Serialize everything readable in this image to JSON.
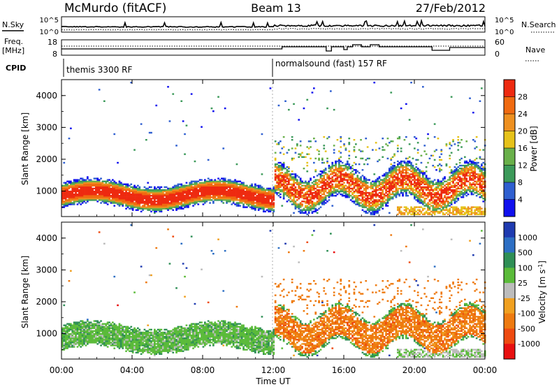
{
  "header": {
    "station": "McMurdo (fitACF)",
    "beam": "Beam 13",
    "date": "27/Feb/2012"
  },
  "top_panels": {
    "nsky_label": "N.Sky",
    "nsearch_label": "N.Search",
    "noise_ticks_left": [
      "10^5",
      "10^0"
    ],
    "noise_ticks_right": [
      "10^5",
      "10^0"
    ],
    "freq_label_line1": "Freq.",
    "freq_label_line2": "[MHz]",
    "freq_ticks": [
      "18",
      "8"
    ],
    "nave_label": "Nave",
    "nave_ticks": [
      "60",
      "0"
    ],
    "cpid_label": "CPID",
    "cpid_segments": [
      "themis 3300 RF",
      "normalsound (fast) 157 RF"
    ]
  },
  "x_axis": {
    "title": "Time UT",
    "ticks": [
      "00:00",
      "04:00",
      "08:00",
      "12:00",
      "16:00",
      "20:00",
      "00:00"
    ]
  },
  "chart_data": [
    {
      "type": "heatmap",
      "parameter": "power",
      "ylabel": "Slant Range [km]",
      "yticks": [
        1000,
        2000,
        3000,
        4000
      ],
      "ylim": [
        200,
        4500
      ],
      "xlim_hours": [
        0,
        24
      ],
      "colorbar": {
        "title": "Power [dB]",
        "ticks": [
          "4",
          "8",
          "12",
          "16",
          "20",
          "24",
          "28"
        ],
        "colors": [
          "#1010ee",
          "#2f5fd0",
          "#3c9a5a",
          "#69b04a",
          "#e6c21a",
          "#ee9020",
          "#f06a10",
          "#ee2a10"
        ]
      }
    },
    {
      "type": "heatmap",
      "parameter": "velocity",
      "ylabel": "Slant Range [km]",
      "yticks": [
        1000,
        2000,
        3000,
        4000
      ],
      "ylim": [
        200,
        4500
      ],
      "xlim_hours": [
        0,
        24
      ],
      "colorbar": {
        "title": "Velocity [m s^-1]",
        "ticks": [
          "1000",
          "500",
          "100",
          "25",
          "-25",
          "-100",
          "-500",
          "-1000"
        ],
        "colors": [
          "#1f3bb0",
          "#2d6fc4",
          "#2f8f56",
          "#5bbb3a",
          "#bcbcbc",
          "#f0a020",
          "#ee7a10",
          "#ee4a10",
          "#e81010"
        ]
      }
    }
  ]
}
